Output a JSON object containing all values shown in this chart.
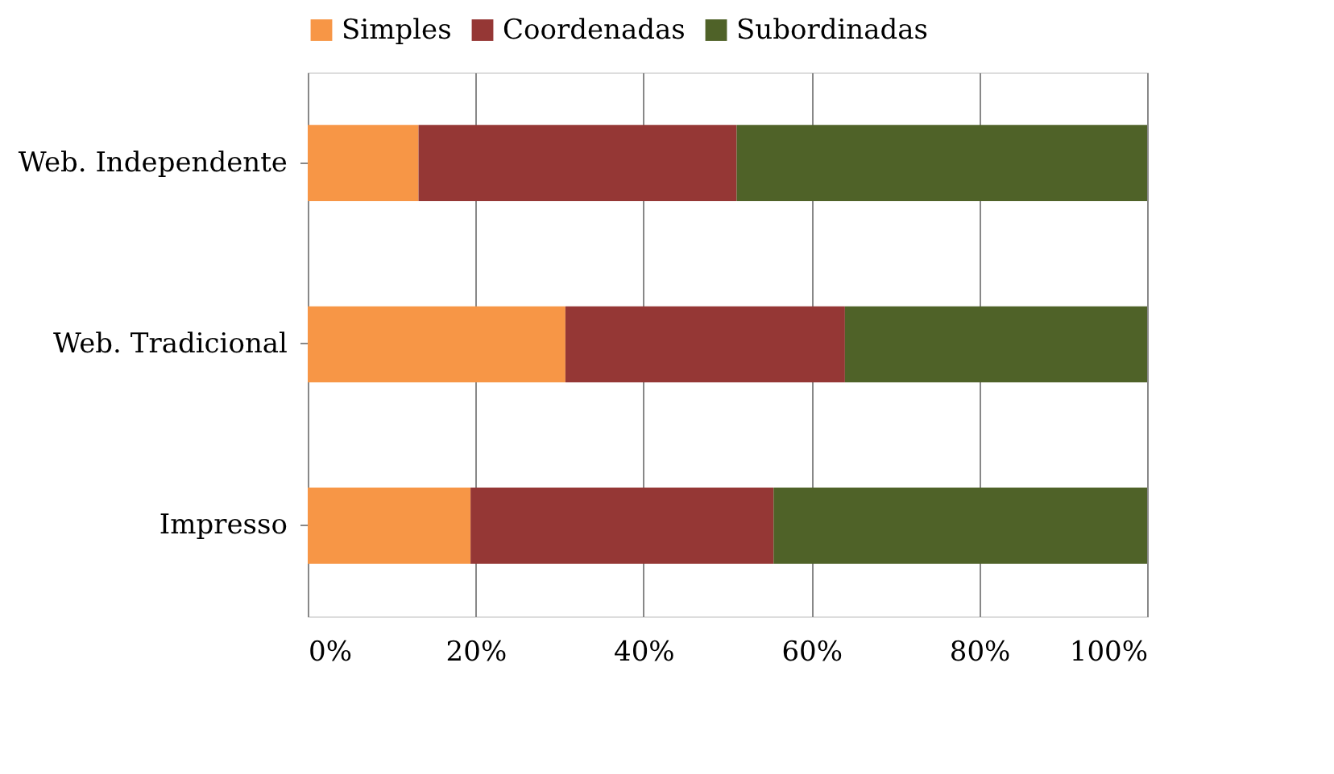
{
  "chart_data": {
    "type": "bar",
    "orientation": "horizontal",
    "stacked": true,
    "categories": [
      "Web. Independente",
      "Web. Tradicional",
      "Impresso"
    ],
    "series": [
      {
        "name": "Simples",
        "color": "#f79646",
        "values": [
          13.2,
          30.7,
          19.4
        ]
      },
      {
        "name": "Coordenadas",
        "color": "#953735",
        "values": [
          37.9,
          33.3,
          36.1
        ]
      },
      {
        "name": "Subordinadas",
        "color": "#4f6228",
        "values": [
          48.9,
          36.0,
          44.5
        ]
      }
    ],
    "xlim": [
      0,
      100
    ],
    "xticks": [
      {
        "value": 0,
        "label": "0%"
      },
      {
        "value": 20,
        "label": "20%"
      },
      {
        "value": 40,
        "label": "40%"
      },
      {
        "value": 60,
        "label": "60%"
      },
      {
        "value": 80,
        "label": "80%"
      },
      {
        "value": 100,
        "label": "100%"
      }
    ],
    "grid": "x",
    "legend": "top"
  }
}
